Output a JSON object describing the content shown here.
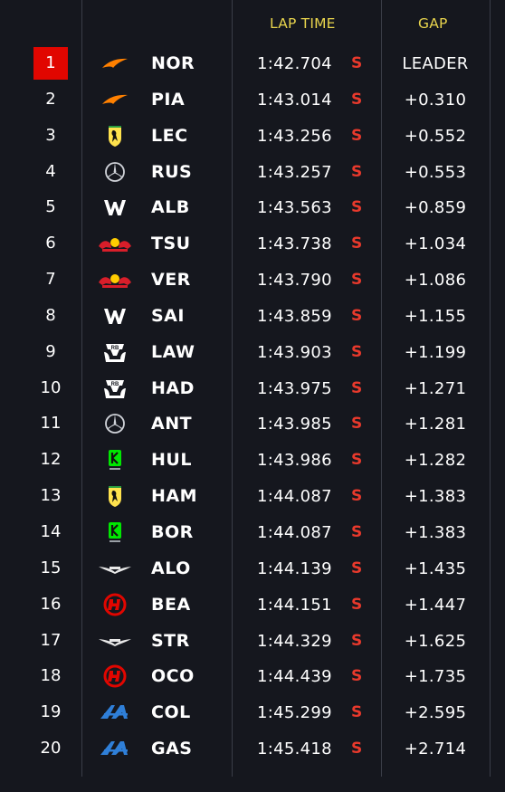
{
  "header": {
    "lap_time": "LAP TIME",
    "gap": "GAP"
  },
  "colors": {
    "accent": "#e8d44d",
    "first_place": "#e10600",
    "tyre_soft": "#e8392c",
    "background": "#15171e"
  },
  "rows": [
    {
      "pos": "1",
      "team_icon": "mclaren-logo",
      "code": "NOR",
      "time": "1:42.704",
      "tyre": "S",
      "gap": "LEADER"
    },
    {
      "pos": "2",
      "team_icon": "mclaren-logo",
      "code": "PIA",
      "time": "1:43.014",
      "tyre": "S",
      "gap": "+0.310"
    },
    {
      "pos": "3",
      "team_icon": "ferrari-logo",
      "code": "LEC",
      "time": "1:43.256",
      "tyre": "S",
      "gap": "+0.552"
    },
    {
      "pos": "4",
      "team_icon": "mercedes-logo",
      "code": "RUS",
      "time": "1:43.257",
      "tyre": "S",
      "gap": "+0.553"
    },
    {
      "pos": "5",
      "team_icon": "williams-logo",
      "code": "ALB",
      "time": "1:43.563",
      "tyre": "S",
      "gap": "+0.859"
    },
    {
      "pos": "6",
      "team_icon": "redbull-logo",
      "code": "TSU",
      "time": "1:43.738",
      "tyre": "S",
      "gap": "+1.034"
    },
    {
      "pos": "7",
      "team_icon": "redbull-logo",
      "code": "VER",
      "time": "1:43.790",
      "tyre": "S",
      "gap": "+1.086"
    },
    {
      "pos": "8",
      "team_icon": "williams-logo",
      "code": "SAI",
      "time": "1:43.859",
      "tyre": "S",
      "gap": "+1.155"
    },
    {
      "pos": "9",
      "team_icon": "racing-bulls-logo",
      "code": "LAW",
      "time": "1:43.903",
      "tyre": "S",
      "gap": "+1.199"
    },
    {
      "pos": "10",
      "team_icon": "racing-bulls-logo",
      "code": "HAD",
      "time": "1:43.975",
      "tyre": "S",
      "gap": "+1.271"
    },
    {
      "pos": "11",
      "team_icon": "mercedes-logo",
      "code": "ANT",
      "time": "1:43.985",
      "tyre": "S",
      "gap": "+1.281"
    },
    {
      "pos": "12",
      "team_icon": "kick-sauber-logo",
      "code": "HUL",
      "time": "1:43.986",
      "tyre": "S",
      "gap": "+1.282"
    },
    {
      "pos": "13",
      "team_icon": "ferrari-logo",
      "code": "HAM",
      "time": "1:44.087",
      "tyre": "S",
      "gap": "+1.383"
    },
    {
      "pos": "14",
      "team_icon": "kick-sauber-logo",
      "code": "BOR",
      "time": "1:44.087",
      "tyre": "S",
      "gap": "+1.383"
    },
    {
      "pos": "15",
      "team_icon": "aston-martin-logo",
      "code": "ALO",
      "time": "1:44.139",
      "tyre": "S",
      "gap": "+1.435"
    },
    {
      "pos": "16",
      "team_icon": "haas-logo",
      "code": "BEA",
      "time": "1:44.151",
      "tyre": "S",
      "gap": "+1.447"
    },
    {
      "pos": "17",
      "team_icon": "aston-martin-logo",
      "code": "STR",
      "time": "1:44.329",
      "tyre": "S",
      "gap": "+1.625"
    },
    {
      "pos": "18",
      "team_icon": "haas-logo",
      "code": "OCO",
      "time": "1:44.439",
      "tyre": "S",
      "gap": "+1.735"
    },
    {
      "pos": "19",
      "team_icon": "alpine-logo",
      "code": "COL",
      "time": "1:45.299",
      "tyre": "S",
      "gap": "+2.595"
    },
    {
      "pos": "20",
      "team_icon": "alpine-logo",
      "code": "GAS",
      "time": "1:45.418",
      "tyre": "S",
      "gap": "+2.714"
    }
  ]
}
